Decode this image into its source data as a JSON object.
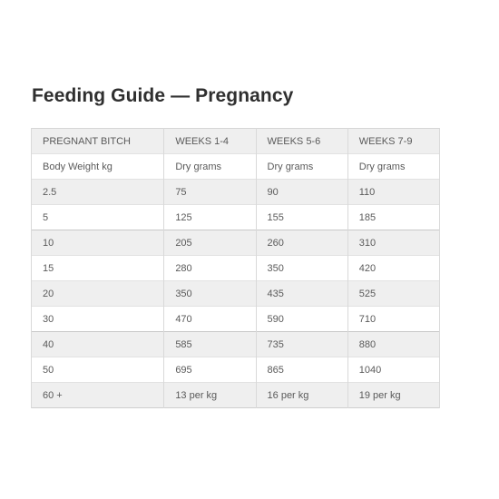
{
  "title": "Feeding Guide — Pregnancy",
  "table": {
    "header": [
      "PREGNANT BITCH",
      "WEEKS 1-4",
      "WEEKS 5-6",
      "WEEKS 7-9"
    ],
    "subheader": [
      "Body Weight kg",
      "Dry grams",
      "Dry grams",
      "Dry grams"
    ],
    "rows": [
      [
        "2.5",
        "75",
        "90",
        "110"
      ],
      [
        "5",
        "125",
        "155",
        "185"
      ],
      [
        "10",
        "205",
        "260",
        "310"
      ],
      [
        "15",
        "280",
        "350",
        "420"
      ],
      [
        "20",
        "350",
        "435",
        "525"
      ],
      [
        "30",
        "470",
        "590",
        "710"
      ],
      [
        "40",
        "585",
        "735",
        "880"
      ],
      [
        "50",
        "695",
        "865",
        "1040"
      ],
      [
        "60 +",
        "13 per kg",
        "16 per kg",
        "19 per kg"
      ]
    ]
  }
}
